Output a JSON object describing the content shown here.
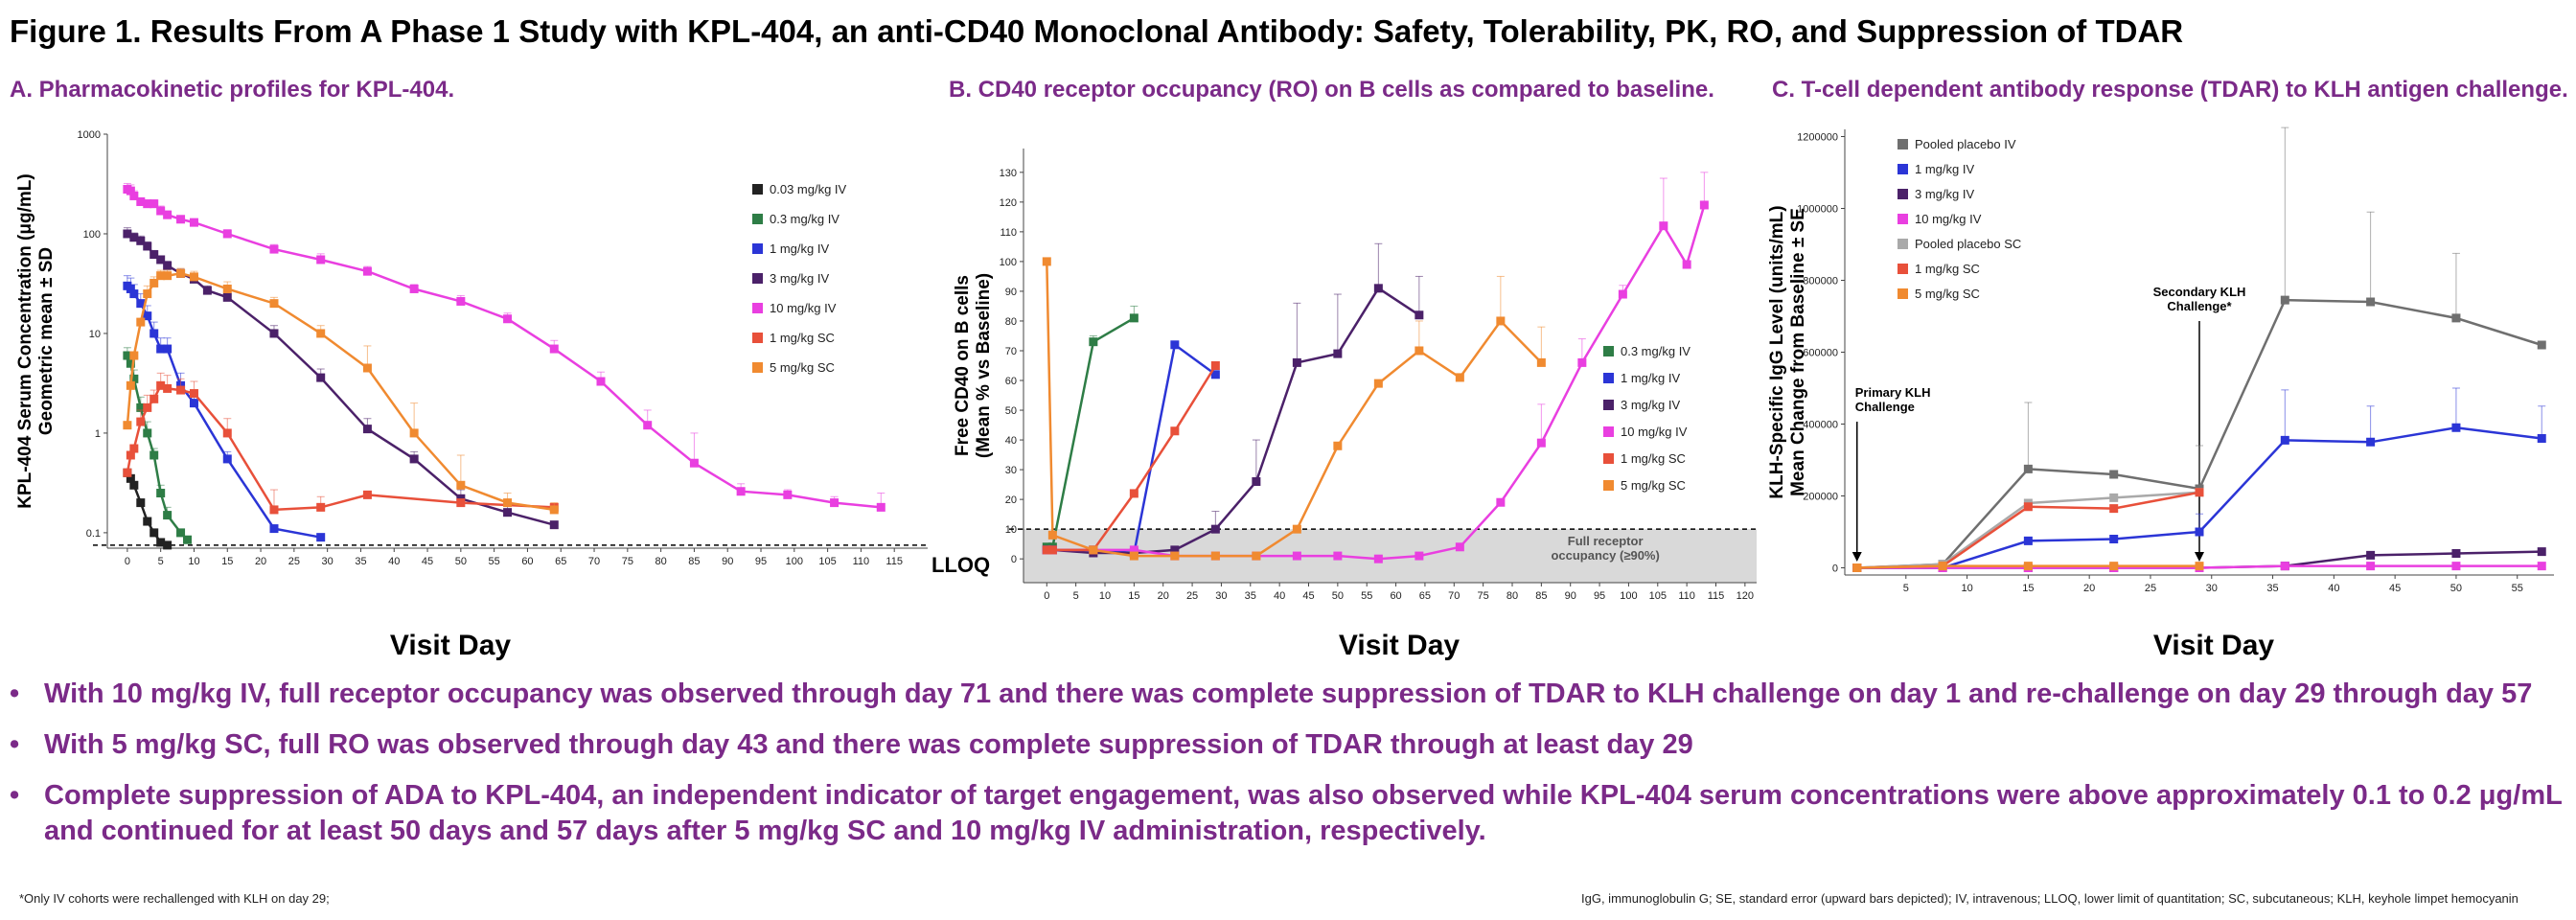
{
  "title": "Figure 1. Results From A Phase 1 Study with KPL-404, an anti-CD40 Monoclonal Antibody: Safety, Tolerability, PK, RO, and Suppression of TDAR",
  "panels": {
    "a": "A. Pharmacokinetic profiles for KPL-404.",
    "b": "B. CD40 receptor occupancy (RO) on B cells as compared to baseline.",
    "c": "C. T-cell dependent antibody response (TDAR) to KLH antigen challenge."
  },
  "bullets": [
    "With 10 mg/kg IV, full receptor occupancy was observed through day 71 and there was complete suppression of TDAR to KLH challenge on day 1 and re-challenge on day 29 through day 57",
    "With 5 mg/kg SC, full RO was observed through day 43 and there was complete suppression of TDAR through at least day 29",
    "Complete suppression of ADA to KPL-404, an independent indicator of target engagement, was also observed while KPL-404 serum concentrations were above approximately 0.1 to 0.2 μg/mL and continued for at least 50 days and 57 days after 5 mg/kg SC and 10 mg/kg IV administration, respectively."
  ],
  "bullet_symbol": "•",
  "footnotes": {
    "left": "*Only IV cohorts were rechallenged with KLH on day 29;",
    "right": "IgG, immunoglobulin G; SE, standard error (upward bars depicted); IV, intravenous; LLOQ, lower limit of quantitation; SC, subcutaneous; KLH, keyhole limpet hemocyanin"
  },
  "colors": {
    "0.03 mg/kg IV": "#222222",
    "0.3 mg/kg IV": "#2e7d46",
    "1 mg/kg IV": "#2b35d6",
    "3 mg/kg IV": "#4b2169",
    "10 mg/kg IV": "#e93fe0",
    "1 mg/kg SC": "#e8503a",
    "5 mg/kg SC": "#f08a30",
    "Pooled placebo IV": "#6f6f6f",
    "Pooled placebo SC": "#a9a9a9",
    "title_purple": "#7b2a88",
    "ro_shade": "#d9d9d9"
  },
  "chart_data": [
    {
      "type": "line",
      "panel": "A",
      "xlabel": "Visit Day",
      "ylabel": [
        "KPL-404 Serum Concentration (μg/mL)",
        "Geometric mean ± SD"
      ],
      "yscale": "log",
      "xlim": [
        -3,
        120
      ],
      "ylim": [
        0.07,
        1000
      ],
      "xticks": [
        0,
        5,
        10,
        15,
        20,
        25,
        30,
        35,
        40,
        45,
        50,
        55,
        60,
        65,
        70,
        75,
        80,
        85,
        90,
        95,
        100,
        105,
        110,
        115
      ],
      "yticks": [
        0.1,
        1,
        10,
        100,
        1000
      ],
      "ytick_labels": [
        "0.1",
        "1",
        "10",
        "100",
        "1000"
      ],
      "reference_line": {
        "label": "LLOQ",
        "y": 0.075
      },
      "legend_position": "right",
      "series": [
        {
          "name": "0.03 mg/kg IV",
          "x": [
            0,
            0.5,
            1,
            2,
            3,
            4,
            5,
            6
          ],
          "y": [
            0.4,
            0.35,
            0.3,
            0.2,
            0.13,
            0.1,
            0.08,
            0.075
          ],
          "err": [
            0,
            0,
            0,
            0,
            0,
            0,
            0,
            0
          ]
        },
        {
          "name": "0.3 mg/kg IV",
          "x": [
            0,
            0.5,
            1,
            2,
            3,
            4,
            5,
            6,
            8,
            9
          ],
          "y": [
            6,
            5,
            3.5,
            1.8,
            1,
            0.6,
            0.25,
            0.15,
            0.1,
            0.085
          ],
          "err": [
            1.2,
            1,
            0.8,
            0.5,
            0.3,
            0.1,
            0.05,
            0.03,
            0,
            0
          ]
        },
        {
          "name": "1 mg/kg IV",
          "x": [
            0,
            0.5,
            1,
            2,
            3,
            4,
            5,
            6,
            8,
            10,
            15,
            22,
            29
          ],
          "y": [
            30,
            28,
            25,
            20,
            15,
            10,
            7,
            7,
            3,
            2,
            0.55,
            0.11,
            0.09
          ],
          "err": [
            8,
            8,
            6,
            5,
            4,
            3,
            2,
            2,
            1,
            0.5,
            0.1,
            0,
            0
          ]
        },
        {
          "name": "3 mg/kg IV",
          "x": [
            0,
            1,
            2,
            3,
            4,
            5,
            6,
            8,
            10,
            12,
            15,
            22,
            29,
            36,
            43,
            50,
            57,
            64
          ],
          "y": [
            100,
            92,
            85,
            75,
            62,
            55,
            48,
            40,
            35,
            27,
            23,
            10,
            3.6,
            1.1,
            0.55,
            0.22,
            0.16,
            0.12
          ],
          "err": [
            15,
            10,
            10,
            8,
            6,
            5,
            5,
            4,
            3,
            3,
            3,
            2,
            0.8,
            0.3,
            0.1,
            0.05,
            0.03,
            0
          ]
        },
        {
          "name": "10 mg/kg IV",
          "x": [
            0,
            0.5,
            1,
            2,
            3,
            4,
            5,
            6,
            8,
            10,
            15,
            22,
            29,
            36,
            43,
            50,
            57,
            64,
            71,
            78,
            85,
            92,
            99,
            106,
            113
          ],
          "y": [
            280,
            270,
            240,
            210,
            200,
            200,
            170,
            155,
            140,
            130,
            100,
            70,
            55,
            42,
            28,
            21,
            14,
            7,
            3.3,
            1.2,
            0.5,
            0.26,
            0.24,
            0.2,
            0.18
          ],
          "err": [
            40,
            40,
            30,
            20,
            20,
            20,
            20,
            15,
            10,
            10,
            10,
            8,
            8,
            5,
            3,
            3,
            2,
            1.5,
            0.8,
            0.5,
            0.5,
            0.05,
            0.03,
            0.03,
            0.07
          ]
        },
        {
          "name": "1 mg/kg SC",
          "x": [
            0,
            0.5,
            1,
            2,
            3,
            4,
            5,
            6,
            8,
            10,
            15,
            22,
            29,
            36,
            50,
            64
          ],
          "y": [
            0.4,
            0.6,
            0.7,
            1.3,
            1.8,
            2.2,
            3,
            2.8,
            2.7,
            2.5,
            1,
            0.17,
            0.18,
            0.24,
            0.2,
            0.18
          ],
          "err": [
            0,
            0,
            0,
            0.4,
            0.6,
            0.5,
            1,
            1,
            0.8,
            0.8,
            0.4,
            0.1,
            0.05,
            0,
            0,
            0
          ]
        },
        {
          "name": "5 mg/kg SC",
          "x": [
            0,
            0.5,
            1,
            2,
            3,
            4,
            5,
            6,
            8,
            10,
            15,
            22,
            29,
            36,
            43,
            50,
            57,
            64
          ],
          "y": [
            1.2,
            3,
            6,
            13,
            25,
            32,
            38,
            38,
            40,
            37,
            28,
            20,
            10,
            4.5,
            1,
            0.3,
            0.2,
            0.17
          ],
          "err": [
            0,
            0,
            0,
            0,
            5,
            5,
            5,
            5,
            5,
            5,
            5,
            3,
            2,
            3,
            1,
            0.3,
            0.05,
            0.03
          ]
        }
      ]
    },
    {
      "type": "line",
      "panel": "B",
      "xlabel": "Visit Day",
      "ylabel": [
        "Free CD40 on B cells",
        "(Mean % vs Baseline)"
      ],
      "xlim": [
        -4,
        122
      ],
      "ylim": [
        -8,
        138
      ],
      "xticks": [
        0,
        5,
        10,
        15,
        20,
        25,
        30,
        35,
        40,
        45,
        50,
        55,
        60,
        65,
        70,
        75,
        80,
        85,
        90,
        95,
        100,
        105,
        110,
        115,
        120
      ],
      "yticks": [
        0,
        10,
        20,
        30,
        40,
        50,
        60,
        70,
        80,
        90,
        100,
        110,
        120,
        130
      ],
      "shaded_region": {
        "label": [
          "Full receptor",
          "occupancy (≥90%)"
        ],
        "y": [
          -8,
          10
        ]
      },
      "reference_line": {
        "y": 10
      },
      "legend_position": "right",
      "series": [
        {
          "name": "0.3 mg/kg IV",
          "x": [
            0,
            1,
            8,
            15
          ],
          "y": [
            4,
            4,
            73,
            81
          ],
          "err": [
            0,
            0,
            2,
            4
          ]
        },
        {
          "name": "1 mg/kg IV",
          "x": [
            0,
            1,
            8,
            15,
            22,
            29
          ],
          "y": [
            3,
            3,
            3,
            2,
            72,
            62
          ],
          "err": [
            0,
            0,
            0,
            0,
            0,
            0
          ]
        },
        {
          "name": "3 mg/kg IV",
          "x": [
            0,
            1,
            8,
            15,
            22,
            29,
            36,
            43,
            50,
            57,
            64
          ],
          "y": [
            3,
            3,
            2,
            2,
            3,
            10,
            26,
            66,
            69,
            91,
            82
          ],
          "err": [
            0,
            0,
            0,
            0,
            0,
            6,
            14,
            20,
            20,
            15,
            13
          ]
        },
        {
          "name": "10 mg/kg IV",
          "x": [
            0,
            1,
            8,
            15,
            22,
            29,
            36,
            43,
            50,
            57,
            64,
            71,
            78,
            85,
            92,
            99,
            106,
            110,
            113
          ],
          "y": [
            3,
            3,
            3,
            3,
            1,
            1,
            1,
            1,
            1,
            0,
            1,
            4,
            19,
            39,
            66,
            89,
            112,
            99,
            119
          ],
          "err": [
            0,
            0,
            0,
            0,
            0,
            0,
            0,
            0,
            0,
            0,
            0,
            0,
            0,
            13,
            8,
            3,
            16,
            0,
            11
          ]
        },
        {
          "name": "1 mg/kg SC",
          "x": [
            0,
            1,
            8,
            15,
            22,
            29
          ],
          "y": [
            3,
            3,
            3,
            22,
            43,
            65
          ],
          "err": [
            0,
            0,
            0,
            0,
            0,
            0
          ]
        },
        {
          "name": "5 mg/kg SC",
          "x": [
            0,
            1,
            8,
            15,
            22,
            29,
            36,
            43,
            50,
            57,
            64,
            71,
            78,
            85
          ],
          "y": [
            100,
            8,
            3,
            1,
            1,
            1,
            1,
            10,
            38,
            59,
            70,
            61,
            80,
            66
          ],
          "err": [
            0,
            0,
            0,
            0,
            0,
            0,
            0,
            0,
            0,
            0,
            10,
            0,
            15,
            12
          ]
        }
      ]
    },
    {
      "type": "line",
      "panel": "C",
      "xlabel": "Visit Day",
      "ylabel": [
        "KLH-Specific IgG Level (units/mL)",
        "Mean Change from Baseline ± SE"
      ],
      "xlim": [
        0,
        58
      ],
      "ylim": [
        -20000,
        1220000
      ],
      "xticks": [
        5,
        10,
        15,
        20,
        25,
        30,
        35,
        40,
        45,
        50,
        55
      ],
      "yticks": [
        0,
        200000,
        400000,
        600000,
        800000,
        1000000,
        1200000
      ],
      "ytick_labels": [
        "0",
        "200000",
        "400000",
        "600000",
        "800000",
        "1000000",
        "1200000"
      ],
      "annotations": [
        {
          "text": [
            "Primary KLH",
            "Challenge"
          ],
          "x": 1
        },
        {
          "text": [
            "Secondary KLH",
            "Challenge*"
          ],
          "x": 29
        }
      ],
      "legend_position": "top-left",
      "series": [
        {
          "name": "Pooled placebo IV",
          "x": [
            1,
            8,
            15,
            22,
            29,
            36,
            43,
            50,
            57
          ],
          "y": [
            0,
            10000,
            275000,
            260000,
            220000,
            745000,
            740000,
            695000,
            620000
          ],
          "err": [
            0,
            0,
            185000,
            0,
            120000,
            480000,
            250000,
            180000,
            0
          ]
        },
        {
          "name": "1 mg/kg IV",
          "x": [
            1,
            8,
            15,
            22,
            29,
            36,
            43,
            50,
            57
          ],
          "y": [
            0,
            0,
            75000,
            80000,
            100000,
            355000,
            350000,
            390000,
            360000
          ],
          "err": [
            0,
            0,
            0,
            0,
            50000,
            140000,
            100000,
            110000,
            90000
          ]
        },
        {
          "name": "3 mg/kg IV",
          "x": [
            1,
            8,
            15,
            22,
            29,
            36,
            43,
            50,
            57
          ],
          "y": [
            0,
            0,
            0,
            0,
            0,
            5000,
            35000,
            40000,
            45000
          ],
          "err": [
            0,
            0,
            0,
            0,
            0,
            0,
            0,
            0,
            0
          ]
        },
        {
          "name": "10 mg/kg IV",
          "x": [
            1,
            8,
            15,
            22,
            29,
            36,
            43,
            50,
            57
          ],
          "y": [
            0,
            0,
            0,
            0,
            0,
            5000,
            5000,
            5000,
            5000
          ],
          "err": [
            0,
            0,
            0,
            0,
            0,
            0,
            0,
            0,
            0
          ]
        },
        {
          "name": "Pooled placebo SC",
          "x": [
            1,
            8,
            15,
            22,
            29
          ],
          "y": [
            0,
            10000,
            180000,
            195000,
            210000
          ],
          "err": [
            0,
            0,
            0,
            0,
            0
          ]
        },
        {
          "name": "1 mg/kg SC",
          "x": [
            1,
            8,
            15,
            22,
            29
          ],
          "y": [
            0,
            5000,
            170000,
            165000,
            210000
          ],
          "err": [
            0,
            0,
            0,
            0,
            0
          ]
        },
        {
          "name": "5 mg/kg SC",
          "x": [
            1,
            8,
            15,
            22,
            29
          ],
          "y": [
            0,
            5000,
            5000,
            5000,
            5000
          ],
          "err": [
            0,
            0,
            0,
            0,
            0
          ]
        }
      ]
    }
  ]
}
